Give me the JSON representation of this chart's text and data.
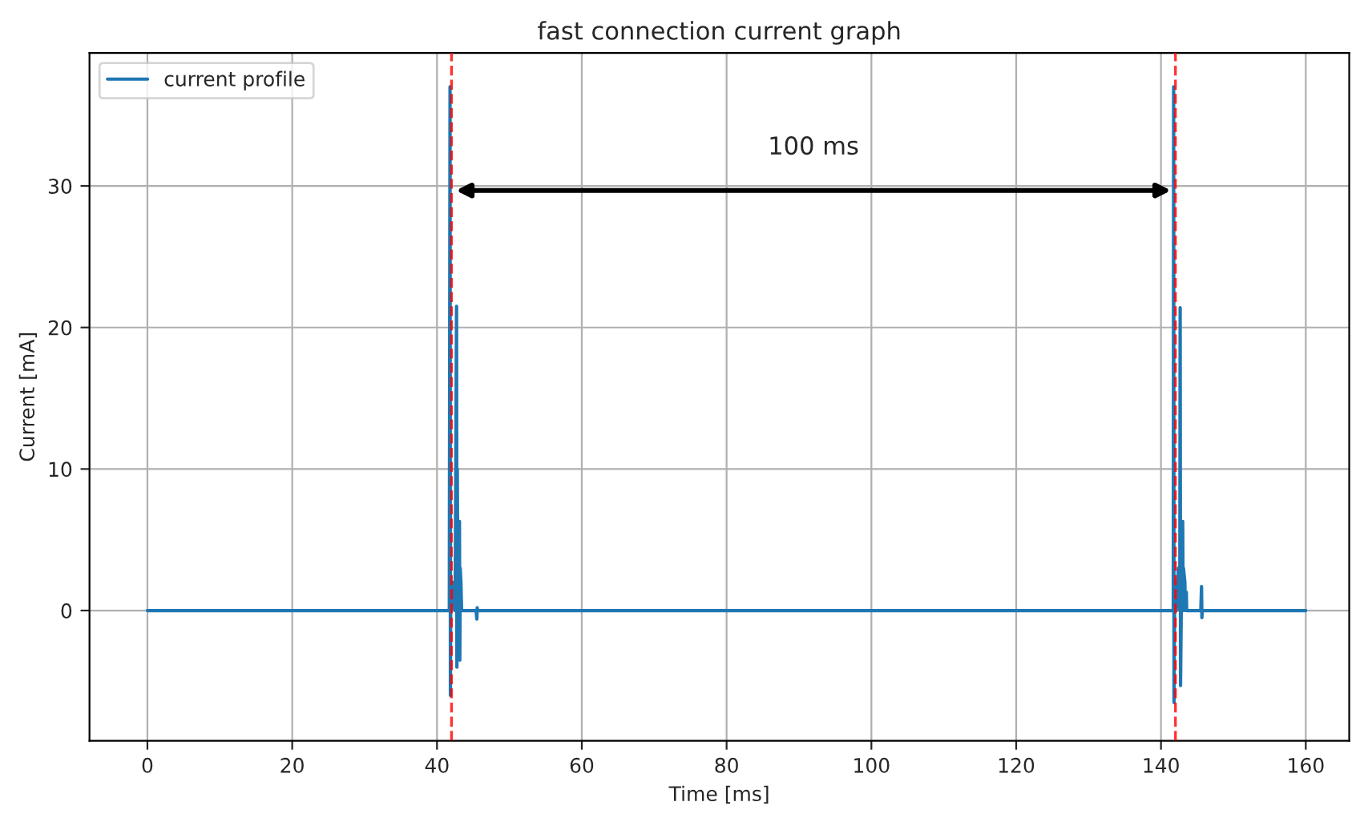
{
  "chart_data": {
    "type": "line",
    "title": "fast connection current graph",
    "xlabel": "Time [ms]",
    "ylabel": "Current [mA]",
    "series": [
      {
        "name": "current profile",
        "color": "#1f77b4",
        "x": [
          0,
          41.7,
          41.8,
          41.85,
          41.9,
          42.0,
          42.2,
          42.5,
          42.7,
          42.75,
          42.8,
          42.9,
          43.1,
          43.15,
          43.2,
          43.3,
          43.4,
          43.6,
          45.4,
          45.5,
          45.55,
          45.6,
          141.6,
          141.7,
          141.75,
          141.8,
          141.9,
          142.1,
          142.4,
          142.6,
          142.65,
          142.7,
          142.8,
          143.0,
          143.05,
          143.1,
          143.3,
          143.35,
          143.5,
          143.55,
          143.7,
          145.5,
          145.6,
          145.65,
          145.7,
          160
        ],
        "values": [
          0,
          0,
          37,
          -6,
          2,
          0,
          2,
          0,
          21.5,
          -4,
          10,
          0,
          6.3,
          -3.5,
          3,
          2,
          0,
          0,
          0,
          -0.6,
          0.2,
          0,
          0,
          0,
          37,
          -6.5,
          2,
          0,
          3,
          0,
          21.4,
          -5.3,
          0,
          6.3,
          0,
          3,
          2,
          0,
          1.3,
          0,
          0,
          0,
          1.7,
          -0.5,
          0,
          0
        ]
      }
    ],
    "xlim": [
      -8,
      166
    ],
    "xticks": [
      0,
      20,
      40,
      60,
      80,
      100,
      120,
      140,
      160
    ],
    "ylim": [
      -9.2,
      39.4
    ],
    "yticks": [
      0,
      10,
      20,
      30
    ],
    "ref_lines": [
      {
        "axis": "x",
        "value": 42,
        "color": "#ff0000",
        "line_style": "dashed"
      },
      {
        "axis": "x",
        "value": 142,
        "color": "#ff0000",
        "line_style": "dashed"
      }
    ],
    "annotations": [
      "100 ms"
    ],
    "grid": true,
    "legend": "top left",
    "marker": "none",
    "line_style": "solid"
  }
}
